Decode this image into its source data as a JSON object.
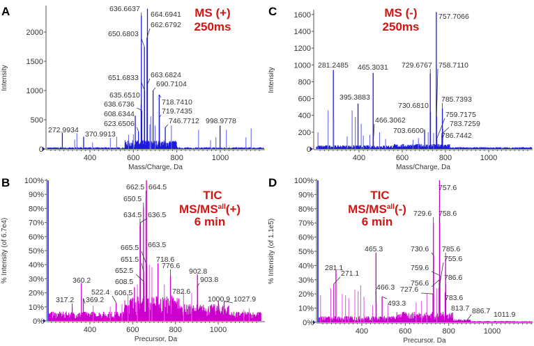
{
  "chart_data": [
    {
      "panel": "A",
      "type": "bar",
      "title": [
        "MS (+)",
        "250ms"
      ],
      "xlabel": "Mass/Charge, Da",
      "ylabel": "Intensity",
      "xlim": [
        200,
        1200
      ],
      "ylim": [
        0,
        2430
      ],
      "xticks": [
        400,
        600,
        800,
        1000
      ],
      "yticks": [
        0,
        500,
        1000,
        1500,
        2000
      ],
      "ytick_labels": [
        "0",
        "500",
        "1000",
        "1500",
        "2000"
      ],
      "color": "#1a1ae0",
      "peaks": [
        {
          "x": 636.6637,
          "y": 2280,
          "label": "636.6637"
        },
        {
          "x": 664.6941,
          "y": 2400,
          "label": "664.6941"
        },
        {
          "x": 662.6792,
          "y": 1900,
          "label": "662.6792"
        },
        {
          "x": 650.6803,
          "y": 1750,
          "label": "650.6803"
        },
        {
          "x": 651.6833,
          "y": 1000,
          "label": "651.6833"
        },
        {
          "x": 663.6824,
          "y": 1100,
          "label": "663.6824"
        },
        {
          "x": 690.7104,
          "y": 1000,
          "label": "690.7104"
        },
        {
          "x": 635.651,
          "y": 760,
          "label": "635.6510"
        },
        {
          "x": 638.6736,
          "y": 660,
          "label": "638.6736"
        },
        {
          "x": 718.741,
          "y": 930,
          "label": "718.7410"
        },
        {
          "x": 719.7435,
          "y": 540,
          "label": "719.7435"
        },
        {
          "x": 608.6344,
          "y": 570,
          "label": "608.6344"
        },
        {
          "x": 623.6506,
          "y": 300,
          "label": "623.6506"
        },
        {
          "x": 746.7712,
          "y": 370,
          "label": "746.7712"
        },
        {
          "x": 272.9934,
          "y": 280,
          "label": "272.9934"
        },
        {
          "x": 370.9913,
          "y": 210,
          "label": "370.9913"
        },
        {
          "x": 998.9778,
          "y": 400,
          "label": "998.9778"
        },
        {
          "x": 340,
          "y": 270
        },
        {
          "x": 330,
          "y": 160
        },
        {
          "x": 412,
          "y": 110
        },
        {
          "x": 494,
          "y": 190
        },
        {
          "x": 523,
          "y": 210
        },
        {
          "x": 578,
          "y": 240
        },
        {
          "x": 600,
          "y": 250
        },
        {
          "x": 680,
          "y": 560
        },
        {
          "x": 700,
          "y": 400
        },
        {
          "x": 676,
          "y": 420
        },
        {
          "x": 775,
          "y": 400
        },
        {
          "x": 900,
          "y": 330
        },
        {
          "x": 1028,
          "y": 330
        },
        {
          "x": 1142,
          "y": 350
        },
        {
          "x": 1118,
          "y": 200
        },
        {
          "x": 955,
          "y": 150
        },
        {
          "x": 980,
          "y": 200
        }
      ]
    },
    {
      "panel": "B",
      "type": "bar",
      "title": [
        "TIC",
        "MS/MS",
        "all",
        "(+)",
        "6 min"
      ],
      "xlabel": "Precursor, Da",
      "ylabel": "% Intensity (of 6.7e4)",
      "xlim": [
        200,
        1200
      ],
      "ylim": [
        0,
        100
      ],
      "xticks": [
        400,
        600,
        800,
        1000
      ],
      "yticks": [
        0,
        10,
        20,
        30,
        40,
        50,
        60,
        70,
        80,
        90,
        100
      ],
      "ytick_labels": [
        "0%",
        "10%",
        "20%",
        "30%",
        "40%",
        "50%",
        "60%",
        "70%",
        "80%",
        "90%",
        "100%"
      ],
      "color": "#cc00cc",
      "peaks": [
        {
          "x": 664.5,
          "y": 100,
          "label": "664.5"
        },
        {
          "x": 662.5,
          "y": 88,
          "label": "662.5"
        },
        {
          "x": 650.5,
          "y": 81,
          "label": "650.5"
        },
        {
          "x": 634.5,
          "y": 68,
          "label": "634.5"
        },
        {
          "x": 636.5,
          "y": 70,
          "label": "636.5"
        },
        {
          "x": 665.5,
          "y": 40,
          "label": "665.5"
        },
        {
          "x": 663.5,
          "y": 50,
          "label": "663.5"
        },
        {
          "x": 651.5,
          "y": 35,
          "label": "651.5"
        },
        {
          "x": 718.6,
          "y": 41,
          "label": "718.6"
        },
        {
          "x": 652.5,
          "y": 28,
          "label": "652.5"
        },
        {
          "x": 776.6,
          "y": 32,
          "label": "776.6"
        },
        {
          "x": 902.8,
          "y": 33,
          "label": "902.8"
        },
        {
          "x": 903.8,
          "y": 25,
          "label": "903.8"
        },
        {
          "x": 360.2,
          "y": 27,
          "label": "360.2"
        },
        {
          "x": 608.5,
          "y": 24,
          "label": "608.5"
        },
        {
          "x": 782.6,
          "y": 18,
          "label": "782.6"
        },
        {
          "x": 522.4,
          "y": 13,
          "label": "522.4"
        },
        {
          "x": 606.5,
          "y": 16,
          "label": "606.5"
        },
        {
          "x": 317.2,
          "y": 10,
          "label": "317.2"
        },
        {
          "x": 369.2,
          "y": 16,
          "label": "369.2"
        },
        {
          "x": 1000.9,
          "y": 14,
          "label": "1000.9"
        },
        {
          "x": 1027.9,
          "y": 14,
          "label": "1027.9"
        },
        {
          "x": 415,
          "y": 11
        },
        {
          "x": 495,
          "y": 10
        },
        {
          "x": 550,
          "y": 12
        },
        {
          "x": 578,
          "y": 19
        },
        {
          "x": 622,
          "y": 26
        },
        {
          "x": 678,
          "y": 40
        },
        {
          "x": 690,
          "y": 38
        },
        {
          "x": 748,
          "y": 26
        },
        {
          "x": 838,
          "y": 21
        },
        {
          "x": 876,
          "y": 20
        },
        {
          "x": 1120,
          "y": 8
        },
        {
          "x": 1145,
          "y": 9
        }
      ]
    },
    {
      "panel": "C",
      "type": "bar",
      "title": [
        "MS (-)",
        "250ms"
      ],
      "xlabel": "Mass/Charge, Da",
      "ylabel": "Intensity",
      "xlim": [
        200,
        1200
      ],
      "ylim": [
        0,
        1640
      ],
      "xticks": [
        400,
        600,
        800,
        1000
      ],
      "yticks": [
        0,
        200,
        400,
        600,
        800,
        1000,
        1200,
        1400,
        1600
      ],
      "ytick_labels": [
        "0",
        "200",
        "400",
        "600",
        "800",
        "1000",
        "1200",
        "1400",
        "1600"
      ],
      "color": "#1a1ae0",
      "peaks": [
        {
          "x": 757.7066,
          "y": 1630,
          "label": "757.7066"
        },
        {
          "x": 281.2485,
          "y": 940,
          "label": "281.2485"
        },
        {
          "x": 465.3031,
          "y": 905,
          "label": "465.3031"
        },
        {
          "x": 729.6767,
          "y": 900,
          "label": "729.6767"
        },
        {
          "x": 758.711,
          "y": 390,
          "label": "758.7110"
        },
        {
          "x": 395.3883,
          "y": 540,
          "label": "395.3883"
        },
        {
          "x": 730.681,
          "y": 440,
          "label": "730.6810"
        },
        {
          "x": 785.7393,
          "y": 480,
          "label": "785.7393"
        },
        {
          "x": 759.7175,
          "y": 120,
          "label": "759.7175"
        },
        {
          "x": 466.3062,
          "y": 100,
          "label": "466.3062"
        },
        {
          "x": 783.7259,
          "y": 180,
          "label": "783.7259"
        },
        {
          "x": 703.66,
          "y": 230,
          "label": "703.6600"
        },
        {
          "x": 786.7442,
          "y": 240,
          "label": "786.7442"
        },
        {
          "x": 210,
          "y": 200
        },
        {
          "x": 257,
          "y": 460
        },
        {
          "x": 283,
          "y": 360
        },
        {
          "x": 368,
          "y": 460
        },
        {
          "x": 383,
          "y": 380
        },
        {
          "x": 410,
          "y": 300
        },
        {
          "x": 420,
          "y": 160
        },
        {
          "x": 450,
          "y": 170
        },
        {
          "x": 495,
          "y": 200
        },
        {
          "x": 523,
          "y": 120
        },
        {
          "x": 345,
          "y": 150
        },
        {
          "x": 650,
          "y": 110
        },
        {
          "x": 675,
          "y": 130
        },
        {
          "x": 720,
          "y": 200
        },
        {
          "x": 745,
          "y": 190
        }
      ]
    },
    {
      "panel": "D",
      "type": "bar",
      "title": [
        "TIC",
        "MS/MS",
        "all",
        "(-)",
        "6 min"
      ],
      "xlabel": "Precursor, Da",
      "ylabel": "% Intensity (of 1.1e5)",
      "xlim": [
        200,
        1200
      ],
      "ylim": [
        0,
        100
      ],
      "xticks": [
        400,
        600,
        800,
        1000
      ],
      "yticks": [
        0,
        10,
        20,
        30,
        40,
        50,
        60,
        70,
        80,
        90,
        100
      ],
      "ytick_labels": [
        "0%",
        "10%",
        "20%",
        "30%",
        "40%",
        "50%",
        "60%",
        "70%",
        "80%",
        "90%",
        "100%"
      ],
      "color": "#cc00cc",
      "peaks": [
        {
          "x": 757.6,
          "y": 100,
          "label": "757.6"
        },
        {
          "x": 729.6,
          "y": 70,
          "label": "729.6"
        },
        {
          "x": 758.6,
          "y": 70,
          "label": "758.6"
        },
        {
          "x": 465.3,
          "y": 49,
          "label": "465.3"
        },
        {
          "x": 730.6,
          "y": 47,
          "label": "730.6"
        },
        {
          "x": 785.6,
          "y": 45,
          "label": "785.6"
        },
        {
          "x": 755.6,
          "y": 24,
          "label": "755.6"
        },
        {
          "x": 281.1,
          "y": 37,
          "label": "281.1"
        },
        {
          "x": 759.6,
          "y": 33,
          "label": "759.6"
        },
        {
          "x": 271.1,
          "y": 27,
          "label": "271.1"
        },
        {
          "x": 786.6,
          "y": 27,
          "label": "786.6"
        },
        {
          "x": 756.6,
          "y": 30,
          "label": "756.6"
        },
        {
          "x": 466.3,
          "y": 14,
          "label": "466.3"
        },
        {
          "x": 727.6,
          "y": 20,
          "label": "727.6"
        },
        {
          "x": 493.3,
          "y": 18,
          "label": "493.3"
        },
        {
          "x": 783.6,
          "y": 21,
          "label": "783.6"
        },
        {
          "x": 813.7,
          "y": 6,
          "label": "813.7"
        },
        {
          "x": 886.7,
          "y": 2,
          "label": "886.7"
        },
        {
          "x": 1011.9,
          "y": 1,
          "label": "1011.9"
        },
        {
          "x": 210,
          "y": 19
        },
        {
          "x": 257,
          "y": 24
        },
        {
          "x": 310,
          "y": 20
        },
        {
          "x": 325,
          "y": 19
        },
        {
          "x": 340,
          "y": 17
        },
        {
          "x": 368,
          "y": 23
        },
        {
          "x": 383,
          "y": 22
        },
        {
          "x": 395,
          "y": 26
        },
        {
          "x": 410,
          "y": 18
        },
        {
          "x": 450,
          "y": 12
        },
        {
          "x": 520,
          "y": 12
        },
        {
          "x": 650,
          "y": 14
        },
        {
          "x": 675,
          "y": 15
        },
        {
          "x": 700,
          "y": 20
        },
        {
          "x": 745,
          "y": 24
        }
      ]
    }
  ]
}
